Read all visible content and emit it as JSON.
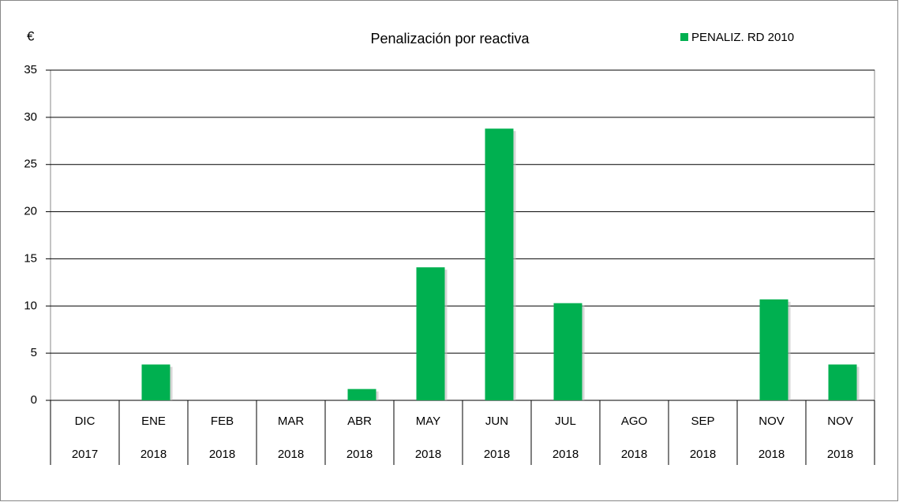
{
  "chart_data": {
    "type": "bar",
    "title": "Penalización por reactiva",
    "y_label": "€",
    "categories": [
      [
        "DIC",
        "2017"
      ],
      [
        "ENE",
        "2018"
      ],
      [
        "FEB",
        "2018"
      ],
      [
        "MAR",
        "2018"
      ],
      [
        "ABR",
        "2018"
      ],
      [
        "MAY",
        "2018"
      ],
      [
        "JUN",
        "2018"
      ],
      [
        "JUL",
        "2018"
      ],
      [
        "AGO",
        "2018"
      ],
      [
        "SEP",
        "2018"
      ],
      [
        "NOV",
        "2018"
      ],
      [
        "NOV",
        "2018"
      ]
    ],
    "series": [
      {
        "name": "PENALIZ. RD 2010",
        "color": "#00b050",
        "values": [
          0,
          3.8,
          0,
          0,
          1.2,
          14.1,
          28.8,
          10.3,
          0,
          0,
          10.7,
          3.8
        ]
      }
    ],
    "ylim": [
      0,
      35
    ],
    "yticks": [
      0,
      5,
      10,
      15,
      20,
      25,
      30,
      35
    ],
    "grid": true,
    "legend": "top-right"
  }
}
